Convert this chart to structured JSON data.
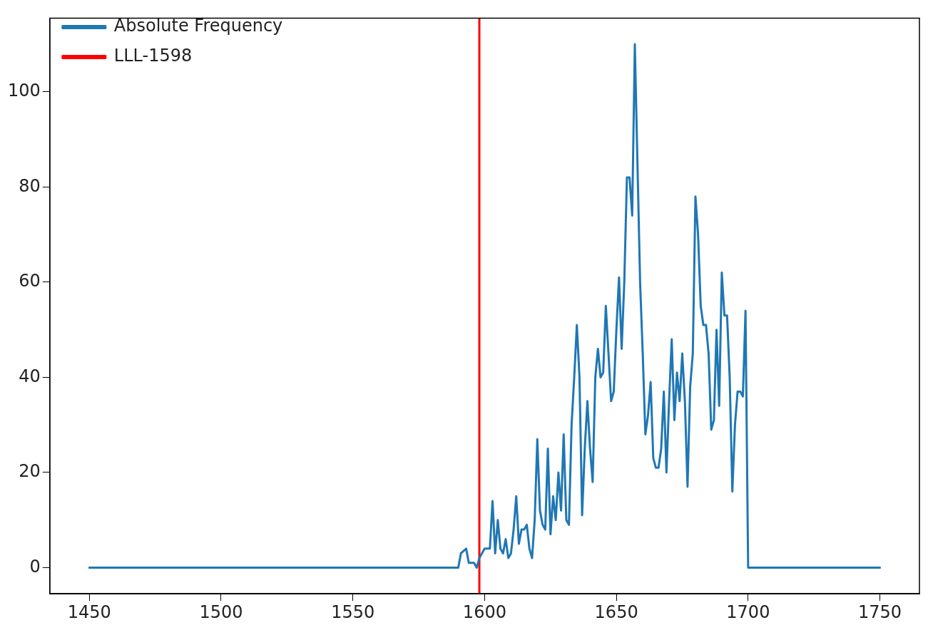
{
  "chart_data": {
    "type": "line",
    "x": [
      1450,
      1590,
      1591,
      1593,
      1594,
      1596,
      1597,
      1598,
      1600,
      1602,
      1603,
      1604,
      1605,
      1606,
      1607,
      1608,
      1609,
      1610,
      1611,
      1612,
      1613,
      1614,
      1615,
      1616,
      1617,
      1618,
      1619,
      1620,
      1621,
      1622,
      1623,
      1624,
      1625,
      1626,
      1627,
      1628,
      1629,
      1630,
      1631,
      1632,
      1633,
      1634,
      1635,
      1636,
      1637,
      1638,
      1639,
      1640,
      1641,
      1642,
      1643,
      1644,
      1645,
      1646,
      1647,
      1648,
      1649,
      1650,
      1651,
      1652,
      1653,
      1654,
      1655,
      1656,
      1657,
      1658,
      1659,
      1660,
      1661,
      1662,
      1663,
      1664,
      1665,
      1666,
      1667,
      1668,
      1669,
      1670,
      1671,
      1672,
      1673,
      1674,
      1675,
      1676,
      1677,
      1678,
      1679,
      1680,
      1681,
      1682,
      1683,
      1684,
      1685,
      1686,
      1687,
      1688,
      1689,
      1690,
      1691,
      1692,
      1693,
      1694,
      1695,
      1696,
      1697,
      1698,
      1699,
      1700,
      1750
    ],
    "series": [
      {
        "name": "Absolute Frequency",
        "color": "#1f77b4",
        "values": [
          0,
          0,
          3,
          4,
          1,
          1,
          0,
          2,
          4,
          4,
          14,
          3,
          10,
          4,
          3,
          6,
          2,
          3,
          8,
          15,
          5,
          8,
          8,
          9,
          4,
          2,
          10,
          27,
          12,
          9,
          8,
          25,
          7,
          15,
          10,
          20,
          12,
          28,
          10,
          9,
          30,
          40,
          51,
          40,
          11,
          25,
          35,
          25,
          18,
          40,
          46,
          40,
          41,
          55,
          45,
          35,
          37,
          50,
          61,
          46,
          60,
          82,
          82,
          74,
          110,
          85,
          60,
          45,
          28,
          32,
          39,
          23,
          21,
          21,
          25,
          37,
          20,
          35,
          48,
          31,
          41,
          35,
          45,
          35,
          17,
          38,
          45,
          78,
          70,
          55,
          51,
          51,
          45,
          29,
          31,
          50,
          34,
          62,
          53,
          53,
          40,
          16,
          30,
          37,
          37,
          36,
          54,
          0,
          0
        ]
      },
      {
        "name": "LLL-1598",
        "color": "#ff0000",
        "x": [
          1598,
          1598
        ],
        "values": [
          -5.5,
          115.5
        ]
      }
    ],
    "xlim": [
      1435,
      1765
    ],
    "xticks": [
      1450,
      1500,
      1550,
      1600,
      1650,
      1700,
      1750
    ],
    "ylim": [
      -5.5,
      115.5
    ],
    "yticks": [
      0,
      20,
      40,
      60,
      80,
      100
    ],
    "grid": false,
    "legend": "top left"
  }
}
